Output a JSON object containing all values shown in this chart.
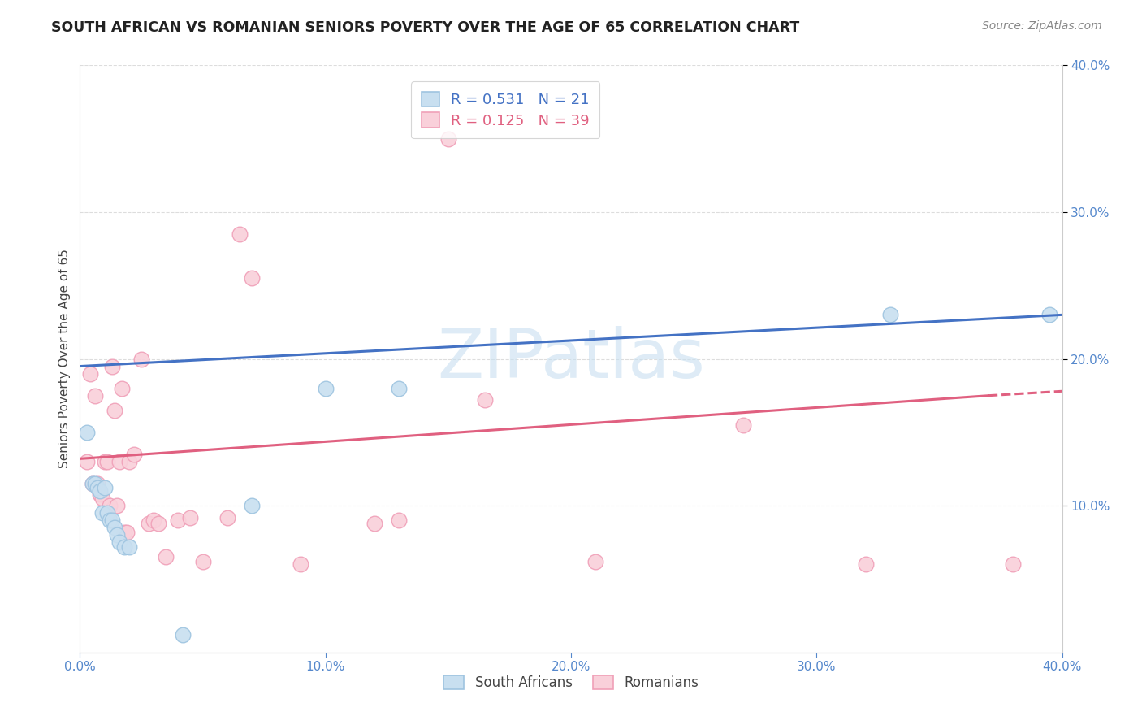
{
  "title": "SOUTH AFRICAN VS ROMANIAN SENIORS POVERTY OVER THE AGE OF 65 CORRELATION CHART",
  "source": "Source: ZipAtlas.com",
  "ylabel": "Seniors Poverty Over the Age of 65",
  "xlim": [
    0.0,
    0.4
  ],
  "ylim": [
    0.0,
    0.4
  ],
  "xticks": [
    0.0,
    0.1,
    0.2,
    0.3,
    0.4
  ],
  "yticks": [
    0.1,
    0.2,
    0.3,
    0.4
  ],
  "background_color": "#ffffff",
  "grid_color": "#dddddd",
  "watermark_text": "ZIPatlas",
  "sa_color": "#9ec4e0",
  "sa_color_fill": "#c8dff0",
  "ro_color": "#f0a0b8",
  "ro_color_fill": "#f9d0da",
  "sa_line_color": "#4472c4",
  "ro_line_color": "#e06080",
  "sa_R": 0.531,
  "sa_N": 21,
  "ro_R": 0.125,
  "ro_N": 39,
  "sa_points": [
    [
      0.003,
      0.15
    ],
    [
      0.005,
      0.115
    ],
    [
      0.006,
      0.115
    ],
    [
      0.007,
      0.112
    ],
    [
      0.008,
      0.11
    ],
    [
      0.009,
      0.095
    ],
    [
      0.01,
      0.112
    ],
    [
      0.011,
      0.095
    ],
    [
      0.012,
      0.09
    ],
    [
      0.013,
      0.09
    ],
    [
      0.014,
      0.085
    ],
    [
      0.015,
      0.08
    ],
    [
      0.016,
      0.075
    ],
    [
      0.018,
      0.072
    ],
    [
      0.02,
      0.072
    ],
    [
      0.042,
      0.012
    ],
    [
      0.07,
      0.1
    ],
    [
      0.1,
      0.18
    ],
    [
      0.13,
      0.18
    ],
    [
      0.33,
      0.23
    ],
    [
      0.395,
      0.23
    ]
  ],
  "ro_points": [
    [
      0.003,
      0.13
    ],
    [
      0.004,
      0.19
    ],
    [
      0.005,
      0.115
    ],
    [
      0.006,
      0.175
    ],
    [
      0.007,
      0.115
    ],
    [
      0.008,
      0.108
    ],
    [
      0.009,
      0.105
    ],
    [
      0.01,
      0.13
    ],
    [
      0.011,
      0.13
    ],
    [
      0.012,
      0.1
    ],
    [
      0.013,
      0.195
    ],
    [
      0.014,
      0.165
    ],
    [
      0.015,
      0.1
    ],
    [
      0.016,
      0.13
    ],
    [
      0.017,
      0.18
    ],
    [
      0.018,
      0.082
    ],
    [
      0.019,
      0.082
    ],
    [
      0.02,
      0.13
    ],
    [
      0.022,
      0.135
    ],
    [
      0.025,
      0.2
    ],
    [
      0.028,
      0.088
    ],
    [
      0.03,
      0.09
    ],
    [
      0.032,
      0.088
    ],
    [
      0.035,
      0.065
    ],
    [
      0.04,
      0.09
    ],
    [
      0.045,
      0.092
    ],
    [
      0.05,
      0.062
    ],
    [
      0.06,
      0.092
    ],
    [
      0.065,
      0.285
    ],
    [
      0.07,
      0.255
    ],
    [
      0.09,
      0.06
    ],
    [
      0.12,
      0.088
    ],
    [
      0.13,
      0.09
    ],
    [
      0.15,
      0.35
    ],
    [
      0.165,
      0.172
    ],
    [
      0.21,
      0.062
    ],
    [
      0.27,
      0.155
    ],
    [
      0.32,
      0.06
    ],
    [
      0.38,
      0.06
    ]
  ],
  "sa_line": [
    [
      0.0,
      0.195
    ],
    [
      0.4,
      0.23
    ]
  ],
  "ro_line_solid": [
    [
      0.0,
      0.132
    ],
    [
      0.37,
      0.175
    ]
  ],
  "ro_line_dash": [
    [
      0.37,
      0.175
    ],
    [
      0.4,
      0.178
    ]
  ]
}
